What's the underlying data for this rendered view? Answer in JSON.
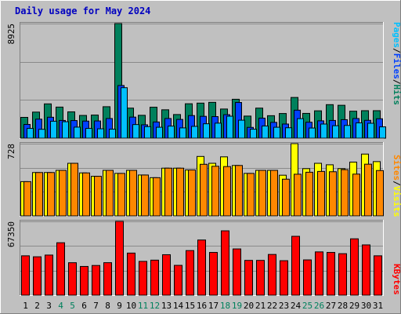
{
  "title": "Daily usage for May 2024",
  "colors": {
    "background": "#c0c0c0",
    "plot": "#c0c0c0",
    "grid": "#8a8a8a",
    "title": "#0000c0",
    "hits": "#00805c",
    "files": "#0040ff",
    "pages": "#00c0ff",
    "visits": "#ffff00",
    "sites": "#ff8800",
    "kbytes": "#ff0000",
    "weekend_day_label": "#00805c",
    "weekday_day_label": "#000000"
  },
  "legend": {
    "top": [
      {
        "text": "Pages",
        "color": "#00c0ff"
      },
      {
        "text": "/",
        "color": "#000000"
      },
      {
        "text": "Files",
        "color": "#0040ff"
      },
      {
        "text": "/",
        "color": "#000000"
      },
      {
        "text": "Hits",
        "color": "#00805c"
      }
    ],
    "middle": [
      {
        "text": "Sites",
        "color": "#ff8800"
      },
      {
        "text": "/",
        "color": "#000000"
      },
      {
        "text": "Visits",
        "color": "#ffff00"
      }
    ],
    "bottom": [
      {
        "text": "KBytes",
        "color": "#ff0000"
      }
    ]
  },
  "chart_data": [
    {
      "type": "bar",
      "panel": "top",
      "ymax_label": "8925",
      "ylim": [
        0,
        8925
      ],
      "grid": true,
      "legend_placement": "right (vertical)",
      "categories": [
        "1",
        "2",
        "3",
        "4",
        "5",
        "6",
        "7",
        "8",
        "9",
        "10",
        "11",
        "12",
        "13",
        "14",
        "15",
        "16",
        "17",
        "18",
        "19",
        "20",
        "21",
        "22",
        "23",
        "24",
        "25",
        "26",
        "27",
        "28",
        "29",
        "30",
        "31"
      ],
      "weekend_days": [
        "4",
        "5",
        "11",
        "12",
        "18",
        "19",
        "25",
        "26"
      ],
      "series": [
        {
          "name": "Hits",
          "values": [
            1620,
            2030,
            2670,
            2420,
            2050,
            1770,
            1800,
            2450,
            8925,
            2340,
            1780,
            2410,
            2210,
            1840,
            2680,
            2730,
            2790,
            2270,
            3030,
            1720,
            2340,
            1750,
            1920,
            3170,
            1930,
            2130,
            2610,
            2560,
            2100,
            2140,
            2140
          ]
        },
        {
          "name": "Files",
          "values": [
            1070,
            1480,
            1630,
            1380,
            1370,
            1330,
            1340,
            1530,
            4100,
            1640,
            1040,
            1260,
            1530,
            1460,
            1760,
            1700,
            1680,
            1830,
            2780,
            840,
            1560,
            1230,
            1100,
            2180,
            1240,
            1350,
            1380,
            1440,
            1530,
            1390,
            1510
          ]
        },
        {
          "name": "Pages",
          "values": [
            760,
            690,
            1320,
            1280,
            860,
            760,
            730,
            700,
            3930,
            1060,
            900,
            850,
            940,
            800,
            920,
            1120,
            1170,
            1710,
            1400,
            700,
            950,
            850,
            810,
            1520,
            790,
            1100,
            970,
            990,
            1190,
            1160,
            880
          ]
        }
      ]
    },
    {
      "type": "bar",
      "panel": "middle",
      "ymax_label": "728",
      "ylim": [
        0,
        728
      ],
      "grid": true,
      "legend_placement": "right (vertical)",
      "categories": [
        "1",
        "2",
        "3",
        "4",
        "5",
        "6",
        "7",
        "8",
        "9",
        "10",
        "11",
        "12",
        "13",
        "14",
        "15",
        "16",
        "17",
        "18",
        "19",
        "20",
        "21",
        "22",
        "23",
        "24",
        "25",
        "26",
        "27",
        "28",
        "29",
        "30",
        "31"
      ],
      "series": [
        {
          "name": "Visits",
          "values": [
            345,
            437,
            437,
            459,
            530,
            433,
            399,
            459,
            428,
            459,
            412,
            385,
            481,
            481,
            463,
            599,
            530,
            595,
            508,
            428,
            459,
            459,
            410,
            728,
            476,
            530,
            515,
            476,
            542,
            623,
            547
          ]
        },
        {
          "name": "Sites",
          "values": [
            345,
            437,
            437,
            459,
            530,
            433,
            399,
            459,
            428,
            459,
            412,
            385,
            481,
            481,
            463,
            520,
            500,
            497,
            508,
            428,
            459,
            459,
            370,
            420,
            440,
            448,
            445,
            466,
            421,
            521,
            457
          ]
        }
      ]
    },
    {
      "type": "bar",
      "panel": "bottom",
      "ymax_label": "67350",
      "ylim": [
        0,
        67350
      ],
      "grid": true,
      "legend_placement": "right (vertical)",
      "categories": [
        "1",
        "2",
        "3",
        "4",
        "5",
        "6",
        "7",
        "8",
        "9",
        "10",
        "11",
        "12",
        "13",
        "14",
        "15",
        "16",
        "17",
        "18",
        "19",
        "20",
        "21",
        "22",
        "23",
        "24",
        "25",
        "26",
        "27",
        "28",
        "29",
        "30",
        "31"
      ],
      "series": [
        {
          "name": "KBytes",
          "values": [
            35930,
            35030,
            36600,
            47850,
            29620,
            26200,
            27100,
            29650,
            67350,
            38410,
            30830,
            31970,
            36930,
            27210,
            40700,
            50340,
            39010,
            58730,
            42210,
            31740,
            31740,
            37150,
            31460,
            53720,
            32200,
            39500,
            39010,
            37870,
            51440,
            45880,
            35930
          ]
        }
      ]
    }
  ]
}
